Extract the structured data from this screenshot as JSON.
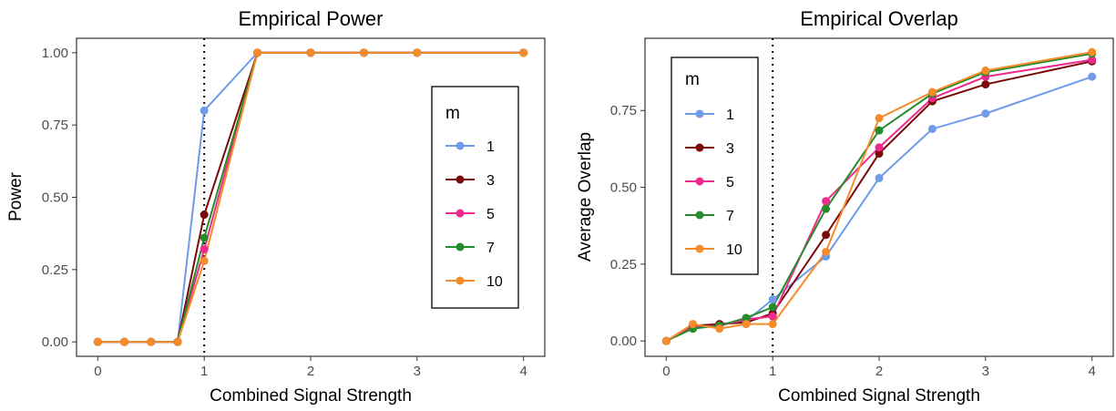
{
  "chart_data": [
    {
      "type": "line",
      "title": "Empirical Power",
      "xlabel": "Combined Signal Strength",
      "ylabel": "Power",
      "xlim": [
        -0.2,
        4.2
      ],
      "ylim": [
        -0.05,
        1.05
      ],
      "xticks": [
        "0",
        "1",
        "2",
        "3",
        "4"
      ],
      "yticks": [
        "0.00",
        "0.25",
        "0.50",
        "0.75",
        "1.00"
      ],
      "vline": 1,
      "legend": {
        "title": "m",
        "placement": "right"
      },
      "x": [
        0,
        0.25,
        0.5,
        0.75,
        1,
        1.5,
        2,
        2.5,
        3,
        4
      ],
      "series": [
        {
          "name": "1",
          "color": "#6f9be8",
          "values": [
            0,
            0,
            0,
            0,
            0.8,
            1,
            1,
            1,
            1,
            1
          ]
        },
        {
          "name": "3",
          "color": "#7a0a0a",
          "values": [
            0,
            0,
            0,
            0,
            0.44,
            1,
            1,
            1,
            1,
            1
          ]
        },
        {
          "name": "5",
          "color": "#ee2a8c",
          "values": [
            0,
            0,
            0,
            0,
            0.32,
            1,
            1,
            1,
            1,
            1
          ]
        },
        {
          "name": "7",
          "color": "#268c2b",
          "values": [
            0,
            0,
            0,
            0,
            0.36,
            1,
            1,
            1,
            1,
            1
          ]
        },
        {
          "name": "10",
          "color": "#f58b2b",
          "values": [
            0,
            0,
            0,
            0,
            0.28,
            1,
            1,
            1,
            1,
            1
          ]
        }
      ]
    },
    {
      "type": "line",
      "title": "Empirical Overlap",
      "xlabel": "Combined Signal Strength",
      "ylabel": "Average Overlap",
      "xlim": [
        -0.2,
        4.2
      ],
      "ylim": [
        -0.05,
        0.985
      ],
      "xticks": [
        "0",
        "1",
        "2",
        "3",
        "4"
      ],
      "yticks": [
        "0.00",
        "0.25",
        "0.50",
        "0.75"
      ],
      "vline": 1,
      "legend": {
        "title": "m",
        "placement": "top-left"
      },
      "x": [
        0,
        0.25,
        0.5,
        0.75,
        1,
        1.5,
        2,
        2.5,
        3,
        4
      ],
      "series": [
        {
          "name": "1",
          "color": "#6f9be8",
          "values": [
            0,
            0.045,
            0.055,
            0.065,
            0.135,
            0.275,
            0.53,
            0.69,
            0.74,
            0.86
          ]
        },
        {
          "name": "3",
          "color": "#7a0a0a",
          "values": [
            0,
            0.05,
            0.055,
            0.06,
            0.09,
            0.345,
            0.61,
            0.78,
            0.835,
            0.91
          ]
        },
        {
          "name": "5",
          "color": "#ee2a8c",
          "values": [
            0,
            0.045,
            0.05,
            0.07,
            0.08,
            0.455,
            0.63,
            0.79,
            0.86,
            0.915
          ]
        },
        {
          "name": "7",
          "color": "#268c2b",
          "values": [
            0,
            0.04,
            0.05,
            0.075,
            0.11,
            0.43,
            0.685,
            0.805,
            0.875,
            0.935
          ]
        },
        {
          "name": "10",
          "color": "#f58b2b",
          "values": [
            0,
            0.055,
            0.04,
            0.055,
            0.055,
            0.29,
            0.725,
            0.81,
            0.88,
            0.94
          ]
        }
      ]
    }
  ]
}
